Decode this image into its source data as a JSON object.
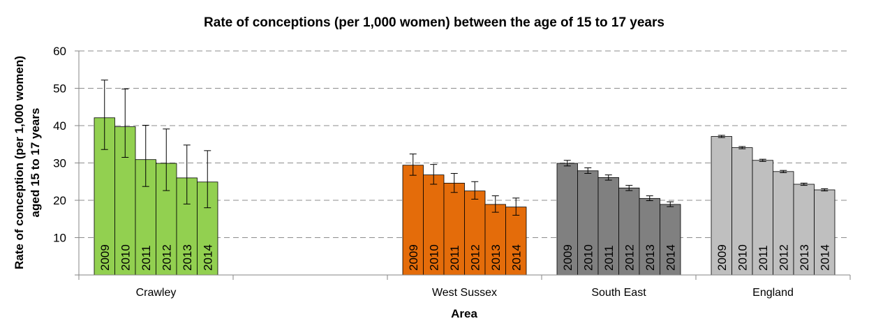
{
  "chart_data": {
    "type": "bar",
    "title": "Rate of conceptions (per 1,000 women) between the age of 15 to 17 years",
    "xlabel": "Area",
    "ylabel": [
      "Rate of conception (per 1,000 women)",
      "aged 15 to 17 years"
    ],
    "ylim": [
      0,
      60
    ],
    "yticks": [
      10,
      20,
      30,
      40,
      50,
      60
    ],
    "grid": true,
    "categories": [
      "Crawley",
      "",
      "West Sussex",
      "South East",
      "England"
    ],
    "groups": [
      {
        "name": "Crawley",
        "color": "#92d050",
        "years": [
          "2009",
          "2010",
          "2011",
          "2012",
          "2013",
          "2014"
        ],
        "values": [
          42.1,
          39.7,
          30.9,
          29.9,
          26.0,
          24.9
        ],
        "err_low": [
          33.6,
          31.5,
          23.7,
          22.6,
          19.0,
          18.0
        ],
        "err_high": [
          52.2,
          49.8,
          40.1,
          39.1,
          34.8,
          33.3
        ]
      },
      {
        "name": "West Sussex",
        "color": "#e46c0a",
        "years": [
          "2009",
          "2010",
          "2011",
          "2012",
          "2013",
          "2014"
        ],
        "values": [
          29.4,
          26.8,
          24.6,
          22.5,
          18.9,
          18.2
        ],
        "err_low": [
          26.7,
          24.3,
          22.1,
          20.3,
          16.8,
          16.0
        ],
        "err_high": [
          32.4,
          29.6,
          27.2,
          25.0,
          21.2,
          20.6
        ]
      },
      {
        "name": "South East",
        "color": "#808080",
        "years": [
          "2009",
          "2010",
          "2011",
          "2012",
          "2013",
          "2014"
        ],
        "values": [
          29.9,
          27.9,
          26.1,
          23.3,
          20.5,
          18.9
        ],
        "err_low": [
          29.2,
          27.2,
          25.4,
          22.6,
          19.9,
          18.3
        ],
        "err_high": [
          30.7,
          28.7,
          26.8,
          24.0,
          21.2,
          19.6
        ]
      },
      {
        "name": "England",
        "color": "#bfbfbf",
        "years": [
          "2009",
          "2010",
          "2011",
          "2012",
          "2013",
          "2014"
        ],
        "values": [
          37.1,
          34.1,
          30.7,
          27.7,
          24.3,
          22.8
        ],
        "err_low": [
          36.8,
          33.8,
          30.4,
          27.4,
          24.0,
          22.5
        ],
        "err_high": [
          37.4,
          34.4,
          31.0,
          28.0,
          24.6,
          23.1
        ]
      }
    ]
  }
}
